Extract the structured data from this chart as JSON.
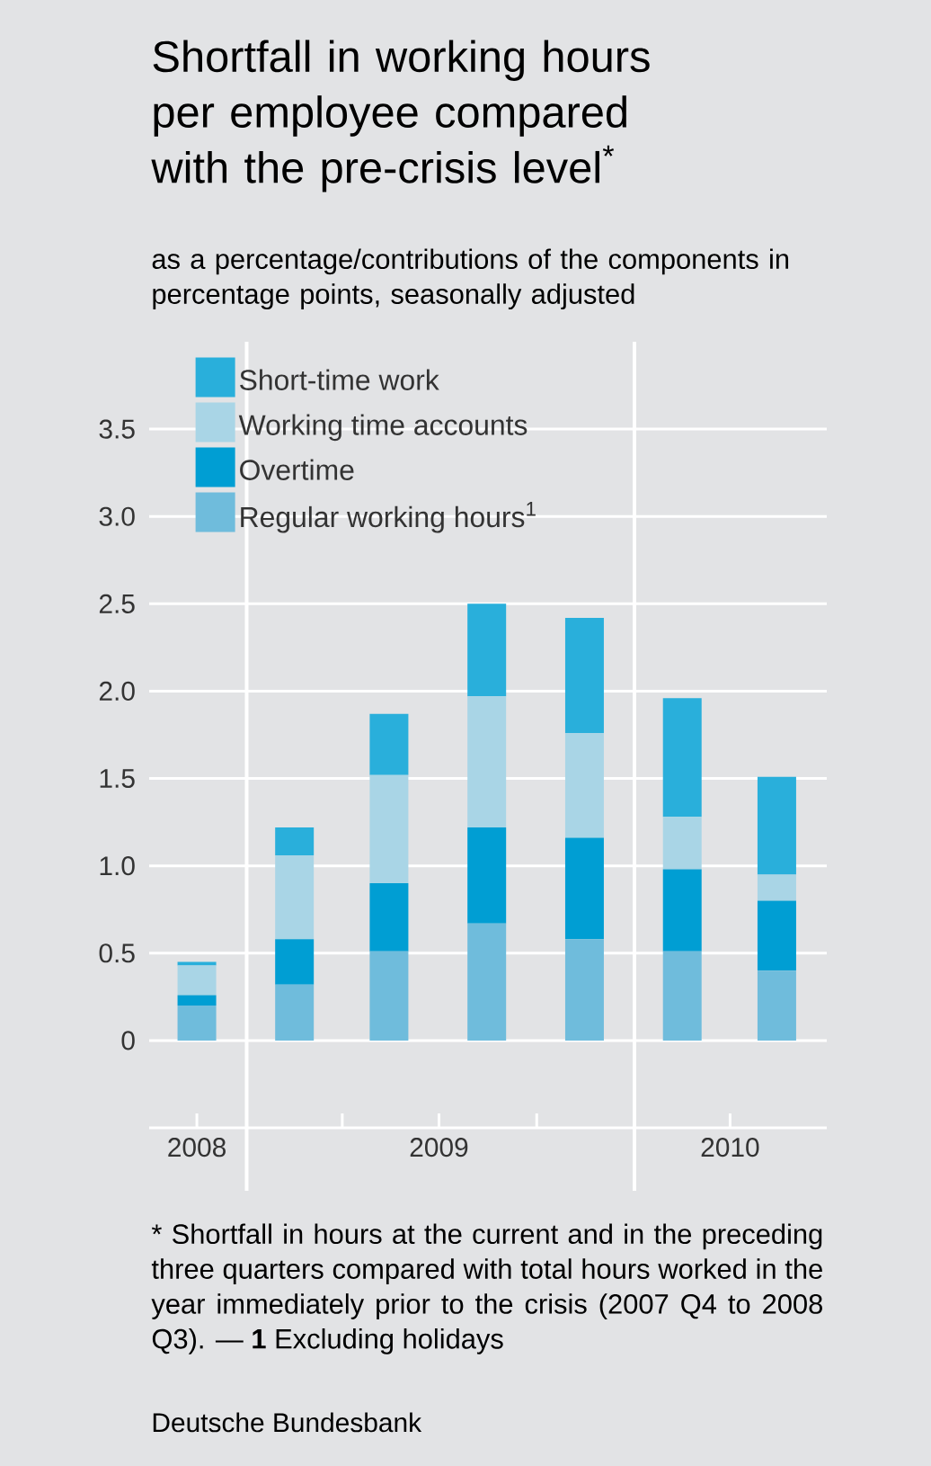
{
  "chart_data": {
    "type": "bar",
    "stacked": true,
    "title": "Shortfall in working hours per employee compared with the pre-crisis level$^{*}$",
    "subtitle": "as a percentage/contributions of the components in percentage points, seasonally adjusted",
    "annotations": [
      "* Shortfall in hours at the current and in the preceding three quarters compared with total hours worked in the year immediately prior to the crisis (2007 Q4 to 2008 Q3). — **1** Excluding holidays",
      "Deutsche Bundesbank"
    ],
    "x": [
      "2008-11-15",
      "2009-02-15",
      "2009-05-15",
      "2009-08-15",
      "2009-11-15",
      "2010-02-15",
      "2010-05-15"
    ],
    "xlim": [
      "2008-10-01",
      "2010-07-01"
    ],
    "xticks": [
      {
        "value": "2008-11-15",
        "label": "2008"
      },
      {
        "value": "2009-04-01",
        "label": null
      },
      {
        "value": "2009-07-01",
        "label": "2009"
      },
      {
        "value": "2009-10-01",
        "label": null
      },
      {
        "value": "2010-04-01",
        "label": "2010"
      }
    ],
    "ylim": [
      -0.5,
      4.0
    ],
    "yticks": [
      0,
      0.5,
      {
        "value": 1,
        "label": "1.0"
      },
      1.5,
      {
        "value": 2,
        "label": "2.0"
      },
      2.5,
      {
        "value": 3,
        "label": "3.0"
      },
      3.5
    ],
    "series": [
      {
        "name": "Regular working hours$^{1}$",
        "color": "#6fbcdc",
        "values": [
          0.2,
          0.32,
          0.51,
          0.67,
          0.58,
          0.51,
          0.4
        ]
      },
      {
        "name": "Overtime",
        "color": "#009ed3",
        "values": [
          0.06,
          0.26,
          0.39,
          0.55,
          0.58,
          0.47,
          0.4
        ]
      },
      {
        "name": "Working time accounts",
        "color": "#a9d5e6",
        "values": [
          0.17,
          0.48,
          0.62,
          0.75,
          0.6,
          0.3,
          0.15
        ]
      },
      {
        "name": "Short-time work",
        "color": "#29afdb",
        "values": [
          0.02,
          0.16,
          0.35,
          0.53,
          0.66,
          0.68,
          0.56
        ]
      }
    ],
    "ref_lines": [
      {
        "axis": "x",
        "value": "2009-01-01",
        "color": "#ffffff"
      },
      {
        "axis": "x",
        "value": "2010-01-01",
        "color": "#ffffff"
      }
    ],
    "grid": "y",
    "legend": "top left"
  }
}
